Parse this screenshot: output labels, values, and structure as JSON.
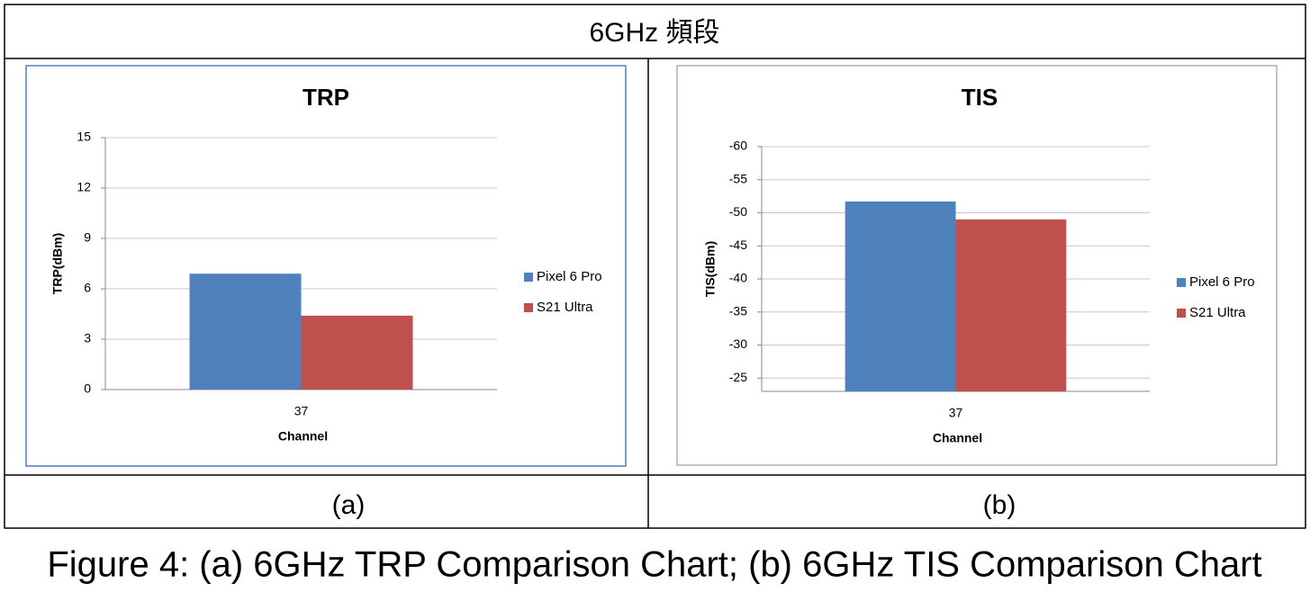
{
  "header": "6GHz 頻段",
  "panel_labels": [
    "(a)",
    "(b)"
  ],
  "caption": "Figure 4: (a) 6GHz TRP Comparison Chart; (b) 6GHz TIS Comparison Chart",
  "chart_data": [
    {
      "type": "bar",
      "title": "TRP",
      "x_label": "Channel",
      "y_label": "TRP(dBm)",
      "categories": [
        "37"
      ],
      "series": [
        {
          "name": "Pixel 6 Pro",
          "color": "#4f81bd",
          "values": [
            6.9
          ]
        },
        {
          "name": "S21 Ultra",
          "color": "#c0504d",
          "values": [
            4.4
          ]
        }
      ],
      "ylim": [
        0,
        15
      ],
      "yticks": [
        0,
        3,
        6,
        9,
        12,
        15
      ],
      "grid": true,
      "legend": "right"
    },
    {
      "type": "bar",
      "title": "TIS",
      "x_label": "Channel",
      "y_label": "TIS(dBm)",
      "categories": [
        "37"
      ],
      "series": [
        {
          "name": "Pixel 6 Pro",
          "color": "#4f81bd",
          "values": [
            -51.7
          ]
        },
        {
          "name": "S21 Ultra",
          "color": "#c0504d",
          "values": [
            -49.0
          ]
        }
      ],
      "ylim": [
        -23,
        -60
      ],
      "yticks": [
        -25,
        -30,
        -35,
        -40,
        -45,
        -50,
        -55,
        -60
      ],
      "grid": true,
      "legend": "right"
    }
  ]
}
